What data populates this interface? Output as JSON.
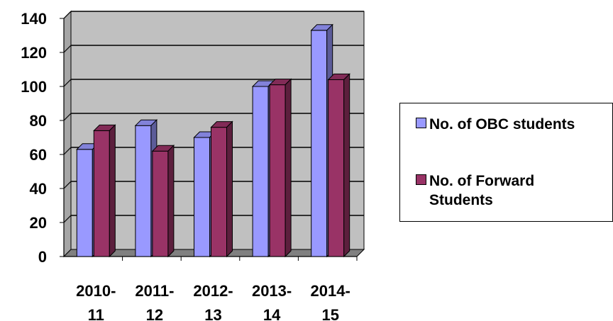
{
  "chart_data": {
    "type": "bar",
    "categories": [
      [
        "2010-",
        "11"
      ],
      [
        "2011-",
        "12"
      ],
      [
        "2012-",
        "13"
      ],
      [
        "2013-",
        "14"
      ],
      [
        "2014-",
        "15"
      ]
    ],
    "series": [
      {
        "name": "No. of OBC students",
        "values": [
          63,
          77,
          70,
          100,
          133
        ],
        "color": "#9999ff"
      },
      {
        "name": "No. of Forward Students",
        "values": [
          74,
          62,
          76,
          101,
          104
        ],
        "color": "#993366"
      }
    ],
    "ylim": [
      0,
      140
    ],
    "yticks": [
      0,
      20,
      40,
      60,
      80,
      100,
      120,
      140
    ],
    "grid": true,
    "legend_position": "right",
    "plot_background": "#c0c0c0"
  },
  "legend": {
    "item0_lines": [
      "No. of OBC students"
    ],
    "item1_lines": [
      "No. of Forward",
      "Students"
    ]
  }
}
